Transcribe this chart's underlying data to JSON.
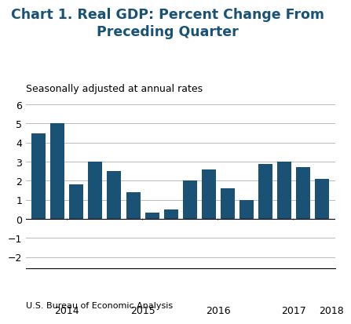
{
  "title": "Chart 1. Real GDP: Percent Change From\nPreceding Quarter",
  "subtitle": "Seasonally adjusted at annual rates",
  "footer": "U.S. Bureau of Economic Analysis",
  "bar_color": "#1A5276",
  "values": [
    4.5,
    5.0,
    1.8,
    3.0,
    2.5,
    1.4,
    0.35,
    0.5,
    2.0,
    2.6,
    1.6,
    1.0,
    2.9,
    3.0,
    2.7,
    2.1
  ],
  "year_labels": [
    "2014",
    "2015",
    "2016",
    "2017",
    "2018"
  ],
  "yticks": [
    -2,
    -1,
    0,
    1,
    2,
    3,
    4,
    5,
    6
  ],
  "ylim": [
    -2.6,
    6.3
  ],
  "title_color": "#1A5276",
  "title_fontsize": 12.5,
  "subtitle_fontsize": 9,
  "footer_fontsize": 8,
  "grid_color": "#BBBBBB",
  "bar_width": 0.75
}
